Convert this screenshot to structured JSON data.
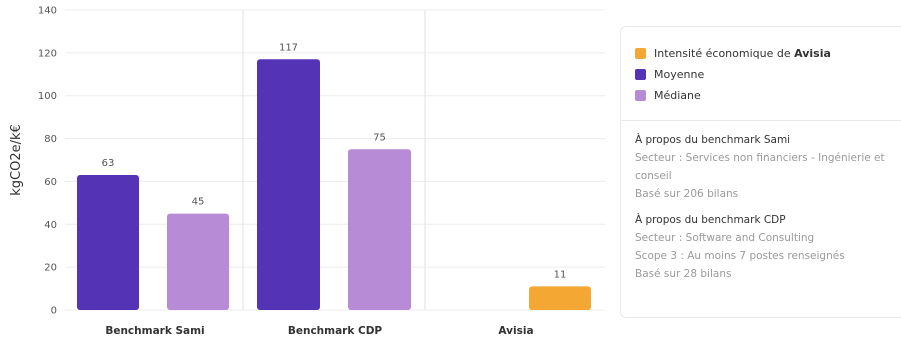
{
  "chart_data": {
    "type": "bar",
    "ylabel": "kgCO2e/k€",
    "ylim": [
      0,
      140
    ],
    "yticks": [
      0,
      20,
      40,
      60,
      80,
      100,
      120,
      140
    ],
    "grid": true,
    "legend_position": "right",
    "categories": [
      "Benchmark Sami",
      "Benchmark CDP",
      "Avisia"
    ],
    "bars": [
      {
        "category": "Benchmark Sami",
        "series": "Moyenne",
        "value": 63,
        "label": "63"
      },
      {
        "category": "Benchmark Sami",
        "series": "Médiane",
        "value": 45,
        "label": "45"
      },
      {
        "category": "Benchmark CDP",
        "series": "Moyenne",
        "value": 117,
        "label": "117"
      },
      {
        "category": "Benchmark CDP",
        "series": "Médiane",
        "value": 75,
        "label": "75"
      },
      {
        "category": "Avisia",
        "series": "Intensité économique de Avisia",
        "value": 11,
        "label": "11"
      }
    ],
    "series": [
      {
        "name": "Intensité économique de Avisia",
        "color": "#F5A733"
      },
      {
        "name": "Moyenne",
        "color": "#5533B5"
      },
      {
        "name": "Médiane",
        "color": "#B88BD6"
      }
    ]
  },
  "legend": {
    "items": [
      {
        "prefix": "Intensité économique de ",
        "bold": "Avisia",
        "color": "#F5A733"
      },
      {
        "prefix": "Moyenne",
        "bold": "",
        "color": "#5533B5"
      },
      {
        "prefix": "Médiane",
        "bold": "",
        "color": "#B88BD6"
      }
    ]
  },
  "info": {
    "sami": {
      "title": "À propos du benchmark Sami",
      "lines": [
        "Secteur : Services non financiers - Ingénierie et",
        "conseil",
        "Basé sur 206 bilans"
      ]
    },
    "cdp": {
      "title": "À propos du benchmark CDP",
      "lines": [
        "Secteur : Software and Consulting",
        "Scope 3 : Au moins 7 postes renseignés",
        "Basé sur 28 bilans"
      ]
    }
  },
  "colors": {
    "grid": "#ececec",
    "separator": "#e2e2e2",
    "axis_text": "#555555",
    "category_text": "#333333"
  }
}
